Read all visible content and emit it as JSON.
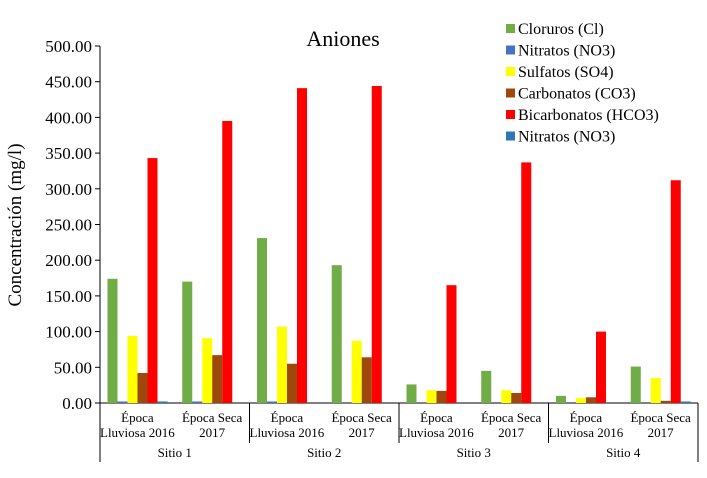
{
  "chart_data": {
    "type": "bar",
    "title": "Aniones",
    "ylabel": "Concentración (mg/l)",
    "xlabel": "",
    "ylim": [
      0,
      500
    ],
    "yticks": [
      "0.00",
      "50.00",
      "100.00",
      "150.00",
      "200.00",
      "250.00",
      "300.00",
      "350.00",
      "400.00",
      "450.00",
      "500.00"
    ],
    "grid": false,
    "legend": "top-right",
    "groups": [
      "Sitio 1",
      "Sitio 2",
      "Sitio 3",
      "Sitio 4"
    ],
    "categories": [
      [
        "Época",
        "Lluviosa 2016"
      ],
      [
        "Época Seca",
        "2017"
      ],
      [
        "Época",
        "Lluviosa 2016"
      ],
      [
        "Época Seca",
        "2017"
      ],
      [
        "Época",
        "Lluviosa 2016"
      ],
      [
        "Época Seca",
        "2017"
      ],
      [
        "Época",
        "Lluviosa 2016"
      ],
      [
        "Época Seca",
        "2017"
      ]
    ],
    "series": [
      {
        "name": "Cloruros (Cl)",
        "color": "#70AD47",
        "values": [
          174,
          170,
          231,
          193,
          26,
          45,
          10,
          51
        ]
      },
      {
        "name": "Nitratos (NO3)",
        "color": "#4472C4",
        "values": [
          1,
          1,
          1,
          0,
          0,
          0,
          0,
          0
        ]
      },
      {
        "name": "Sulfatos (SO4)",
        "color": "#FFFF00",
        "values": [
          94,
          91,
          107,
          87,
          18,
          18,
          7,
          35
        ]
      },
      {
        "name": "Carbonatos (CO3)",
        "color": "#9E480E",
        "values": [
          42,
          67,
          55,
          64,
          17,
          14,
          8,
          3
        ]
      },
      {
        "name": "Bicarbonatos (HCO3)",
        "color": "#FF0000",
        "values": [
          343,
          395,
          441,
          444,
          165,
          337,
          100,
          312
        ]
      },
      {
        "name": "Nitratos (NO3)",
        "color": "#2E75B6",
        "values": [
          1,
          0,
          0,
          0,
          0,
          0,
          0,
          2
        ]
      }
    ]
  }
}
